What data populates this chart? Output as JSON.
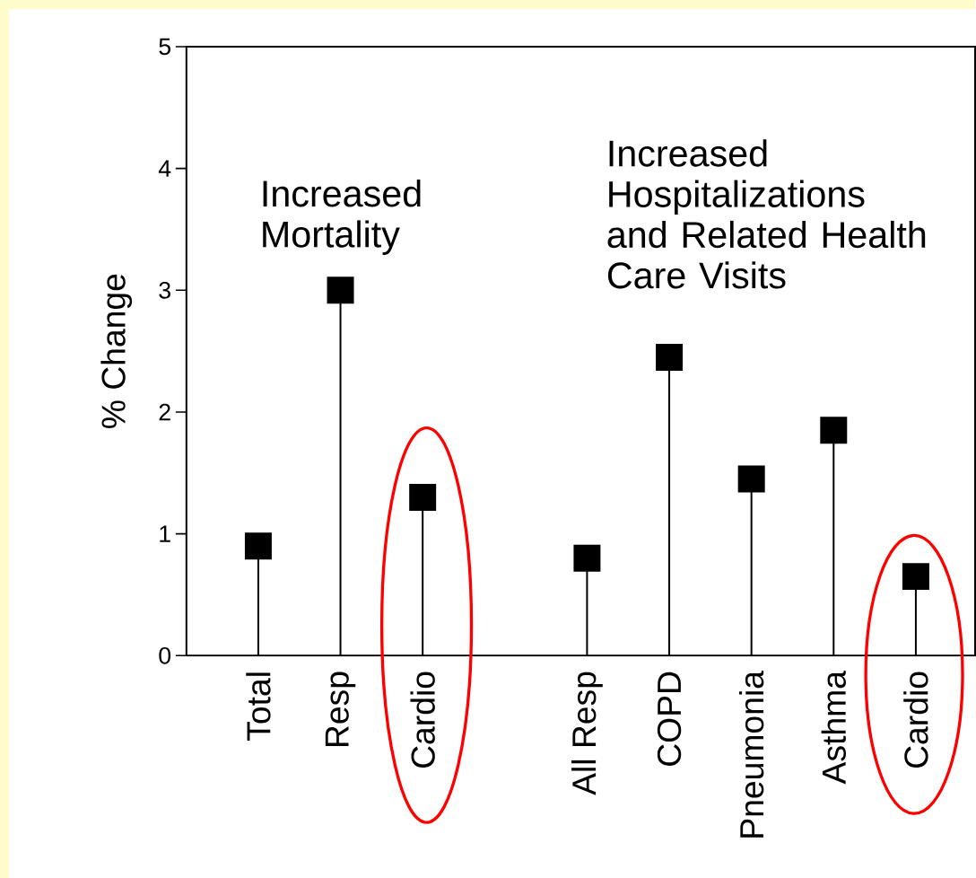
{
  "chart_data": {
    "type": "lollipop",
    "ylabel": "% Change",
    "categories": [
      "Total",
      "Resp",
      "Cardio",
      null,
      "All Resp",
      "COPD",
      "Pneumonia",
      "Asthma",
      "Cardio"
    ],
    "values": [
      0.9,
      3.0,
      1.3,
      null,
      0.8,
      2.45,
      1.45,
      1.85,
      0.65
    ],
    "color": "#000000",
    "marker": "square",
    "ylim": [
      0,
      5
    ],
    "yticks": [
      0,
      1,
      2,
      3,
      4,
      5
    ],
    "annotations": [
      "Increased Mortality",
      "Increased Hospitalizations and Related Health Care Visits"
    ]
  }
}
